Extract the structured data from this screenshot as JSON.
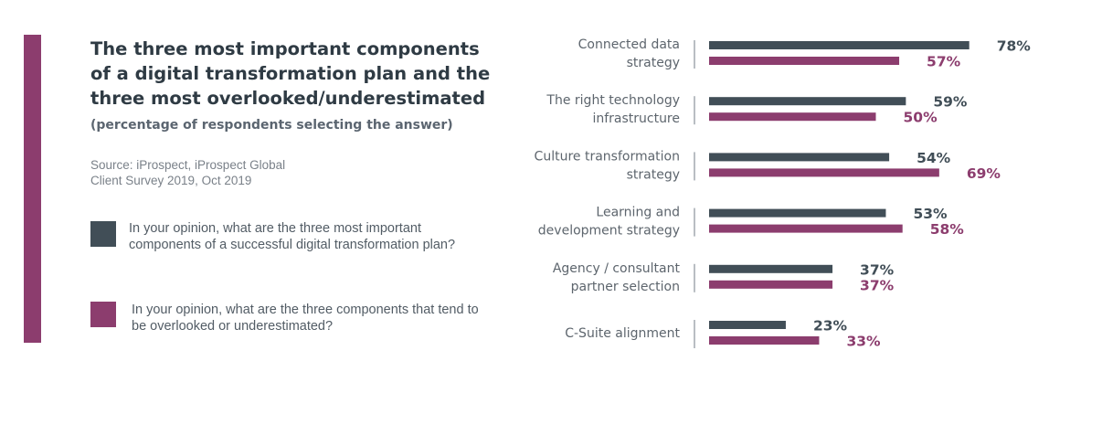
{
  "title": "The three most important components of a digital transformation plan and the three most overlooked/underestimated",
  "subtitle": "(percentage of respondents selecting the answer)",
  "source_line1": "Source: iProspect, iProspect Global",
  "source_line2": "Client Survey 2019,  Oct 2019",
  "legend": [
    {
      "text": "In your opinion, what are the three most important components of a successful digital transformation plan?",
      "color": "#414e57"
    },
    {
      "text": "In your opinion, what are the three components that tend to be overlooked or underestimated?",
      "color": "#8c3d6e"
    }
  ],
  "chart_data": {
    "type": "bar",
    "orientation": "horizontal",
    "categories": [
      [
        "Connected data",
        "strategy"
      ],
      [
        "The right technology",
        "infrastructure"
      ],
      [
        "Culture transformation",
        "strategy"
      ],
      [
        "Learning and",
        "development strategy"
      ],
      [
        "Agency / consultant",
        "partner selection"
      ],
      [
        "C-Suite alignment"
      ]
    ],
    "series": [
      {
        "values": [
          78,
          59,
          54,
          53,
          37,
          23
        ],
        "color": "#414e57"
      },
      {
        "values": [
          57,
          50,
          69,
          58,
          37,
          33
        ],
        "color": "#8c3d6e"
      }
    ],
    "value_suffix": "%",
    "xlim": [
      0,
      100
    ],
    "grid": false
  }
}
